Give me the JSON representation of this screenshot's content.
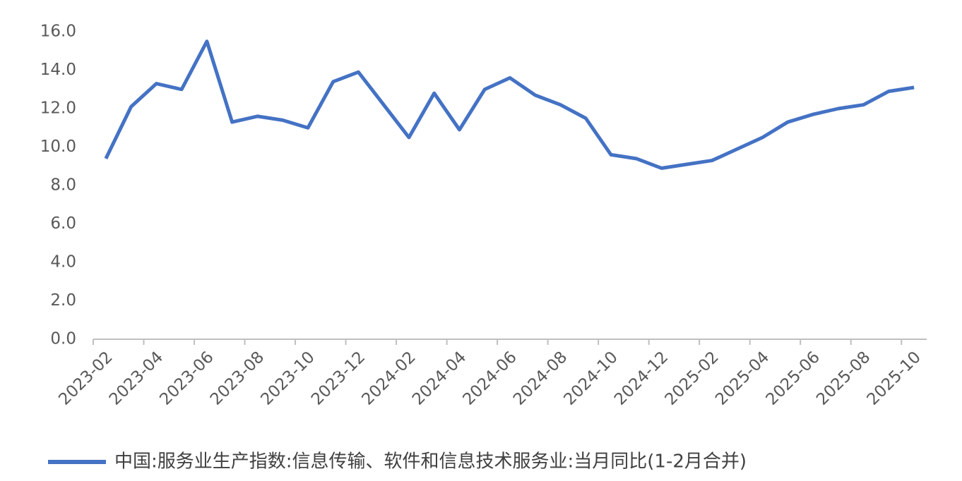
{
  "chart_data": {
    "type": "line",
    "categories": [
      "2023-02",
      null,
      "2023-04",
      null,
      "2023-06",
      null,
      "2023-08",
      null,
      "2023-10",
      null,
      "2023-12",
      null,
      "2024-02",
      null,
      "2024-04",
      null,
      "2024-06",
      null,
      "2024-08",
      null,
      "2024-10",
      null,
      "2024-12",
      null,
      "2025-02",
      null,
      "2025-04",
      null,
      "2025-06",
      null,
      "2025-08",
      null,
      "2025-10"
    ],
    "series": [
      {
        "name": "中国:服务业生产指数:信息传输、软件和信息技术服务业:当月同比(1-2月合并)",
        "color": "#4472c4",
        "values": [
          9.4,
          12.1,
          13.3,
          13.0,
          15.5,
          11.3,
          11.6,
          11.4,
          11.0,
          13.4,
          13.9,
          12.2,
          10.5,
          12.8,
          10.9,
          13.0,
          13.6,
          12.7,
          12.2,
          11.5,
          9.6,
          9.4,
          8.9,
          9.1,
          9.3,
          9.9,
          10.5,
          11.3,
          11.7,
          12.0,
          12.2,
          12.9,
          13.1
        ]
      }
    ],
    "ylim": [
      0,
      16
    ],
    "yticks": [
      {
        "value": 0,
        "label": "0.0"
      },
      {
        "value": 2,
        "label": "2.0"
      },
      {
        "value": 4,
        "label": "4.0"
      },
      {
        "value": 6,
        "label": "6.0"
      },
      {
        "value": 8,
        "label": "8.0"
      },
      {
        "value": 10,
        "label": "10.0"
      },
      {
        "value": 12,
        "label": "12.0"
      },
      {
        "value": 14,
        "label": "14.0"
      },
      {
        "value": 16,
        "label": "16.0"
      }
    ],
    "grid": false,
    "legend": "bottom"
  }
}
